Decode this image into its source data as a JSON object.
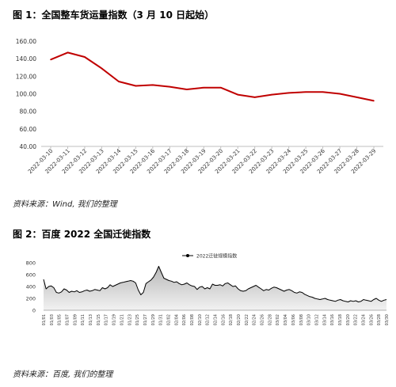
{
  "figure1": {
    "title": "图 1：全国整车货运量指数（3 月 10 日起始）",
    "source": "资料来源：Wind, 我们的整理",
    "line_color": "#c00000",
    "chart_data": {
      "type": "line",
      "title": "",
      "xlabel": "",
      "ylabel": "",
      "ylim": [
        40,
        160
      ],
      "yticks": [
        "160.00",
        "140.00",
        "120.00",
        "100.00",
        "80.00",
        "60.00",
        "40.00"
      ],
      "grid": false,
      "categories": [
        "2022-03-10",
        "2022-03-11",
        "2022-03-12",
        "2022-03-13",
        "2022-03-14",
        "2022-03-15",
        "2022-03-16",
        "2022-03-17",
        "2022-03-18",
        "2022-03-19",
        "2022-03-20",
        "2022-03-21",
        "2022-03-22",
        "2022-03-23",
        "2022-03-24",
        "2022-03-25",
        "2022-03-26",
        "2022-03-27",
        "2022-03-28",
        "2022-03-29"
      ],
      "series": [
        {
          "values": [
            139,
            147,
            142,
            129,
            114,
            109,
            110,
            108,
            105,
            107,
            107,
            99,
            96,
            99,
            101,
            102,
            102,
            100,
            96,
            92
          ]
        }
      ]
    }
  },
  "figure2": {
    "title": "图 2：百度 2022 全国迁徙指数",
    "source": "资料来源：百度, 我们的整理",
    "line_color": "#000000",
    "chart_data": {
      "type": "area",
      "title": "",
      "xlabel": "",
      "ylabel": "",
      "ylim": [
        0,
        800
      ],
      "yticks": [
        "800",
        "600",
        "400",
        "200",
        "0"
      ],
      "grid": false,
      "legend": {
        "label": "2022迁徙规模指数",
        "position": "top-center"
      },
      "tick_labels": [
        "01/01",
        "01/03",
        "01/05",
        "01/07",
        "01/09",
        "01/11",
        "01/13",
        "01/15",
        "01/17",
        "01/19",
        "01/21",
        "01/23",
        "01/25",
        "01/27",
        "01/29",
        "01/31",
        "02/02",
        "02/04",
        "02/06",
        "02/08",
        "02/10",
        "02/12",
        "02/14",
        "02/16",
        "02/18",
        "02/20",
        "02/22",
        "02/24",
        "02/26",
        "02/28",
        "03/02",
        "03/04",
        "03/06",
        "03/08",
        "03/10",
        "03/12",
        "03/14",
        "03/16",
        "03/18",
        "03/20",
        "03/22",
        "03/24",
        "03/26",
        "03/28",
        "03/30"
      ],
      "series": [
        {
          "name": "2022迁徙规模指数",
          "values": [
            520,
            360,
            400,
            410,
            380,
            300,
            290,
            310,
            360,
            340,
            300,
            320,
            310,
            330,
            300,
            310,
            330,
            340,
            320,
            330,
            350,
            340,
            330,
            380,
            360,
            380,
            430,
            400,
            420,
            440,
            460,
            470,
            480,
            490,
            500,
            490,
            460,
            340,
            260,
            300,
            450,
            480,
            510,
            560,
            640,
            740,
            640,
            540,
            520,
            500,
            490,
            470,
            480,
            450,
            430,
            440,
            460,
            430,
            410,
            400,
            350,
            390,
            400,
            360,
            380,
            360,
            440,
            420,
            420,
            430,
            410,
            450,
            460,
            430,
            400,
            410,
            360,
            330,
            320,
            330,
            360,
            380,
            400,
            420,
            390,
            360,
            330,
            350,
            340,
            370,
            390,
            380,
            360,
            340,
            320,
            340,
            350,
            330,
            300,
            290,
            310,
            300,
            270,
            250,
            230,
            220,
            200,
            190,
            180,
            190,
            200,
            180,
            170,
            160,
            150,
            170,
            180,
            160,
            150,
            140,
            160,
            150,
            160,
            140,
            150,
            180,
            170,
            160,
            150,
            180,
            200,
            170,
            150,
            170,
            180
          ]
        }
      ]
    }
  }
}
